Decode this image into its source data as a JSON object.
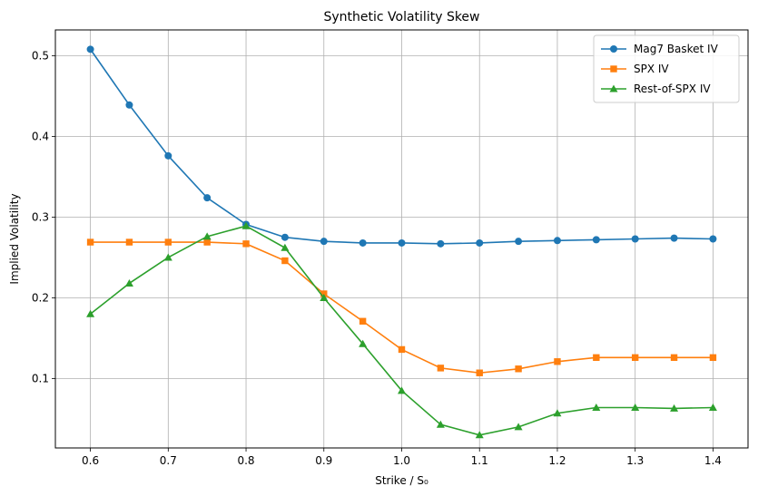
{
  "chart_data": {
    "type": "line",
    "title": "Synthetic Volatility Skew",
    "xlabel": "Strike / S₀",
    "ylabel": "Implied Volatility",
    "x": [
      0.6,
      0.65,
      0.7,
      0.75,
      0.8,
      0.85,
      0.9,
      0.95,
      1.0,
      1.05,
      1.1,
      1.15,
      1.2,
      1.25,
      1.3,
      1.35,
      1.4
    ],
    "xlim": [
      0.555,
      1.445
    ],
    "ylim": [
      0.014,
      0.532
    ],
    "xticks": [
      0.6,
      0.7,
      0.8,
      0.9,
      1.0,
      1.1,
      1.2,
      1.3,
      1.4
    ],
    "xtick_labels": [
      "0.6",
      "0.7",
      "0.8",
      "0.9",
      "1.0",
      "1.1",
      "1.2",
      "1.3",
      "1.4"
    ],
    "yticks": [
      0.1,
      0.2,
      0.3,
      0.4,
      0.5
    ],
    "ytick_labels": [
      "0.1",
      "0.2",
      "0.3",
      "0.4",
      "0.5"
    ],
    "grid": true,
    "legend_position": "top-right",
    "series": [
      {
        "name": "Mag7 Basket IV",
        "color": "#1f77b4",
        "marker": "circle",
        "values": [
          0.508,
          0.439,
          0.376,
          0.324,
          0.291,
          0.275,
          0.27,
          0.268,
          0.268,
          0.267,
          0.268,
          0.27,
          0.271,
          0.272,
          0.273,
          0.274,
          0.273
        ]
      },
      {
        "name": "SPX IV",
        "color": "#ff7f0e",
        "marker": "square",
        "values": [
          0.269,
          0.269,
          0.269,
          0.269,
          0.267,
          0.246,
          0.205,
          0.171,
          0.136,
          0.113,
          0.107,
          0.112,
          0.121,
          0.126,
          0.126,
          0.126,
          0.126
        ]
      },
      {
        "name": "Rest-of-SPX IV",
        "color": "#2ca02c",
        "marker": "triangle",
        "values": [
          0.18,
          0.218,
          0.25,
          0.276,
          0.289,
          0.262,
          0.2,
          0.143,
          0.085,
          0.043,
          0.03,
          0.04,
          0.057,
          0.064,
          0.064,
          0.063,
          0.064
        ]
      }
    ]
  }
}
